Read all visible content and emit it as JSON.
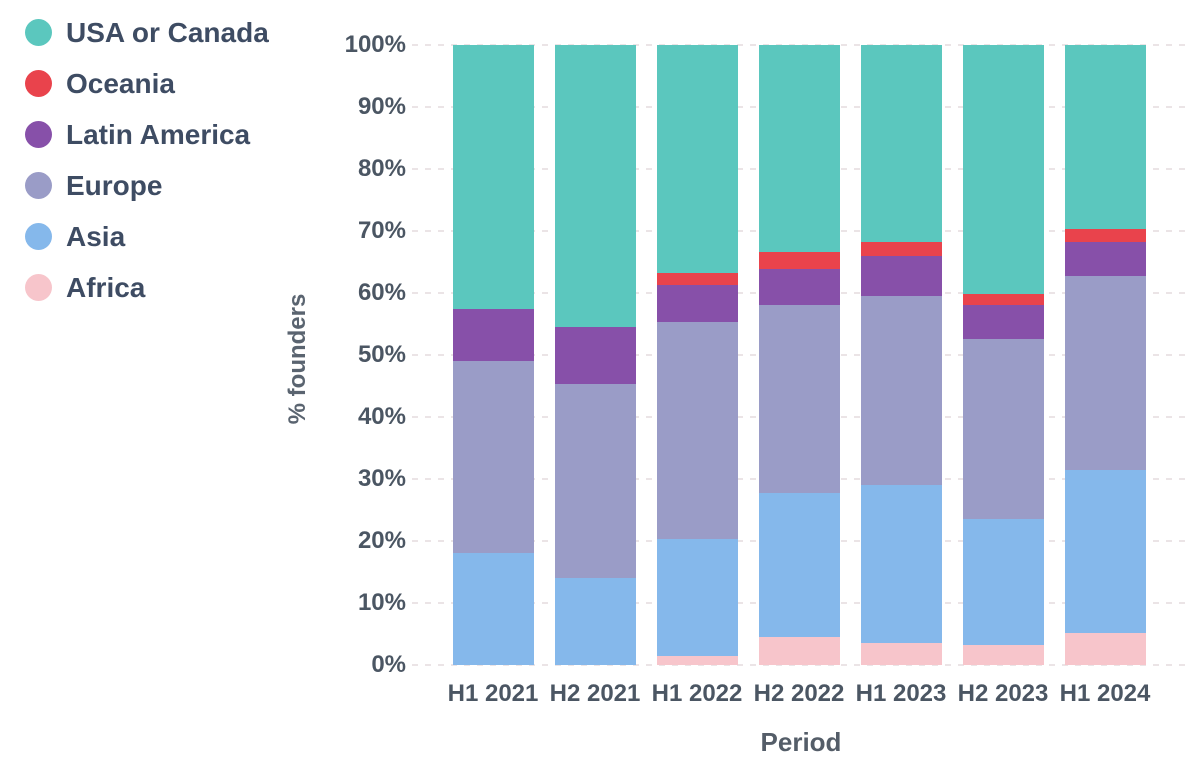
{
  "chart_data": {
    "type": "bar",
    "variant": "stacked-100-percent",
    "title": "",
    "xlabel": "Period",
    "ylabel": "% founders",
    "categories": [
      "H1 2021",
      "H2 2021",
      "H1 2022",
      "H2 2022",
      "H1 2023",
      "H2 2023",
      "H1 2024"
    ],
    "ylim": [
      0,
      100
    ],
    "yticks": [
      "0%",
      "10%",
      "20%",
      "30%",
      "40%",
      "50%",
      "60%",
      "70%",
      "80%",
      "90%",
      "100%"
    ],
    "grid": "horizontal-dashed",
    "legend_position": "top-left",
    "legend_order_top_to_bottom": [
      "USA or Canada",
      "Oceania",
      "Latin America",
      "Europe",
      "Asia",
      "Africa"
    ],
    "stacking_order_bottom_to_top": [
      "Africa",
      "Asia",
      "Europe",
      "Latin America",
      "Oceania",
      "USA or Canada"
    ],
    "series": [
      {
        "name": "Africa",
        "color": "#F7C5CB",
        "values": [
          0,
          0,
          1.5,
          4.5,
          3.5,
          3.3,
          5.2
        ]
      },
      {
        "name": "Asia",
        "color": "#85B8EB",
        "values": [
          18,
          14,
          18.8,
          23.2,
          25.5,
          20.3,
          26.3
        ]
      },
      {
        "name": "Europe",
        "color": "#9A9CC7",
        "values": [
          31,
          31.4,
          35,
          30.3,
          30.5,
          29,
          31.2
        ]
      },
      {
        "name": "Latin America",
        "color": "#8750A9",
        "values": [
          8.5,
          9.1,
          6,
          5.8,
          6.4,
          5.4,
          5.6
        ]
      },
      {
        "name": "Oceania",
        "color": "#E9434C",
        "values": [
          0,
          0,
          2,
          2.8,
          2.4,
          1.8,
          2
        ]
      },
      {
        "name": "USA or Canada",
        "color": "#5BC7BE",
        "values": [
          42.5,
          45.5,
          36.7,
          33.4,
          31.7,
          40.2,
          29.7
        ]
      }
    ],
    "colors": {
      "usa_or_canada": "#5BC7BE",
      "oceania": "#E9434C",
      "latin_america": "#8750A9",
      "europe": "#9A9CC7",
      "asia": "#85B8EB",
      "africa": "#F7C5CB",
      "legend_text": "#3E4C63",
      "tick_text": "#4B5663",
      "axis_title_text": "#545D68",
      "gridline": "#EBE4E6",
      "background": "#FFFFFF"
    }
  }
}
